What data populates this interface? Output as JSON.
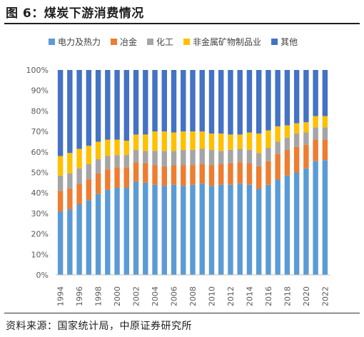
{
  "header": {
    "title": "图 6：煤炭下游消费情况"
  },
  "footer": {
    "source": "资料来源：国家统计局，中原证券研究所"
  },
  "chart_data": {
    "type": "bar",
    "stacked": true,
    "percent_stacked": true,
    "title": "",
    "xlabel": "",
    "ylabel": "",
    "ylim": [
      0,
      100
    ],
    "yticks": [
      "0%",
      "10%",
      "20%",
      "30%",
      "40%",
      "50%",
      "60%",
      "70%",
      "80%",
      "90%",
      "100%"
    ],
    "grid": false,
    "legend_position": "top",
    "categories": [
      "1994",
      "1995",
      "1996",
      "1997",
      "1998",
      "1999",
      "2000",
      "2001",
      "2002",
      "2003",
      "2004",
      "2005",
      "2006",
      "2007",
      "2008",
      "2009",
      "2010",
      "2011",
      "2012",
      "2013",
      "2014",
      "2015",
      "2016",
      "2017",
      "2018",
      "2019",
      "2020",
      "2021",
      "2022"
    ],
    "xtick_labels": [
      "1994",
      "1996",
      "1998",
      "2000",
      "2002",
      "2004",
      "2006",
      "2008",
      "2010",
      "2012",
      "2014",
      "2016",
      "2018",
      "2020",
      "2022"
    ],
    "series": [
      {
        "name": "电力及热力",
        "color": "#5b9bd5",
        "values": [
          31,
          32,
          34.5,
          36.5,
          39.5,
          41.5,
          42.5,
          42.5,
          45.5,
          45,
          44,
          43.5,
          44,
          43.5,
          44,
          44.5,
          43.5,
          44,
          44,
          44.5,
          44,
          42,
          44,
          46.5,
          48.5,
          50,
          52,
          55.5,
          56
        ]
      },
      {
        "name": "冶金",
        "color": "#ed7d31",
        "values": [
          10,
          10,
          10,
          10,
          10,
          10,
          10,
          10,
          9.5,
          9.5,
          9.5,
          9.5,
          9.5,
          10,
          9.5,
          9.5,
          10,
          10,
          10.5,
          10.5,
          10.5,
          11,
          11.5,
          12.5,
          12.5,
          12.5,
          11.5,
          10.5,
          10
        ]
      },
      {
        "name": "化工",
        "color": "#a5a5a5",
        "values": [
          7.5,
          7.5,
          7.5,
          7.5,
          7,
          6.5,
          6,
          6,
          6,
          6,
          7,
          7.5,
          7,
          7.5,
          7.5,
          7.5,
          7.5,
          6.5,
          6.5,
          6.5,
          6.5,
          6.5,
          6.5,
          6,
          6,
          6.5,
          6,
          6,
          6
        ]
      },
      {
        "name": "非金属矿物制品业",
        "color": "#ffc000",
        "values": [
          9.5,
          10,
          9.5,
          9,
          8.5,
          8,
          7.5,
          7,
          7.5,
          8,
          9.5,
          9.5,
          9,
          9,
          9,
          8.5,
          8,
          8.5,
          7.5,
          7,
          8.5,
          9.5,
          8.5,
          7.5,
          6,
          5,
          5,
          5.5,
          5.5
        ]
      },
      {
        "name": "其他",
        "color": "#4472c4",
        "values": [
          42,
          40.5,
          38.5,
          37,
          35,
          34,
          34,
          34.5,
          31.5,
          31.5,
          30,
          30,
          30.5,
          30,
          30,
          30,
          31,
          31,
          31.5,
          31.5,
          30.5,
          31,
          29.5,
          27.5,
          27,
          26,
          25.5,
          22.5,
          22.5
        ]
      }
    ]
  }
}
